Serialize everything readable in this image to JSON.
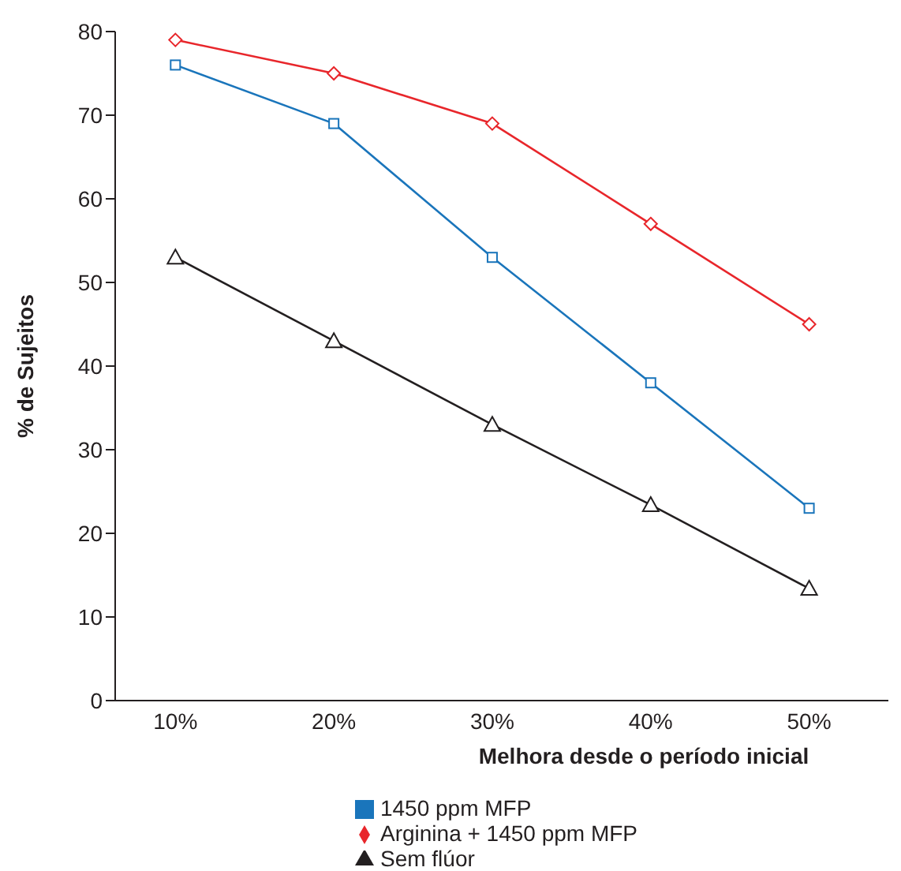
{
  "chart_data": {
    "type": "line",
    "xlabel": "Melhora desde o período inicial",
    "ylabel": "% de Sujeitos",
    "categories": [
      "10%",
      "20%",
      "30%",
      "40%",
      "50%"
    ],
    "series": [
      {
        "name": "Arginina + 1450 ppm MFP",
        "color": "#e8262b",
        "marker": "diamond",
        "values": [
          79,
          75,
          69,
          57,
          45
        ]
      },
      {
        "name": "1450 ppm MFP",
        "color": "#1a75bb",
        "marker": "square",
        "values": [
          76,
          69,
          53,
          38,
          23
        ]
      },
      {
        "name": "Sem flúor",
        "color": "#231f20",
        "marker": "triangle",
        "values": [
          53,
          43,
          33,
          23.4,
          13.4
        ]
      }
    ],
    "ylim": [
      0,
      80
    ],
    "yticks": [
      0,
      10,
      20,
      30,
      40,
      50,
      60,
      70,
      80
    ],
    "grid": false,
    "legend": "bottom"
  }
}
